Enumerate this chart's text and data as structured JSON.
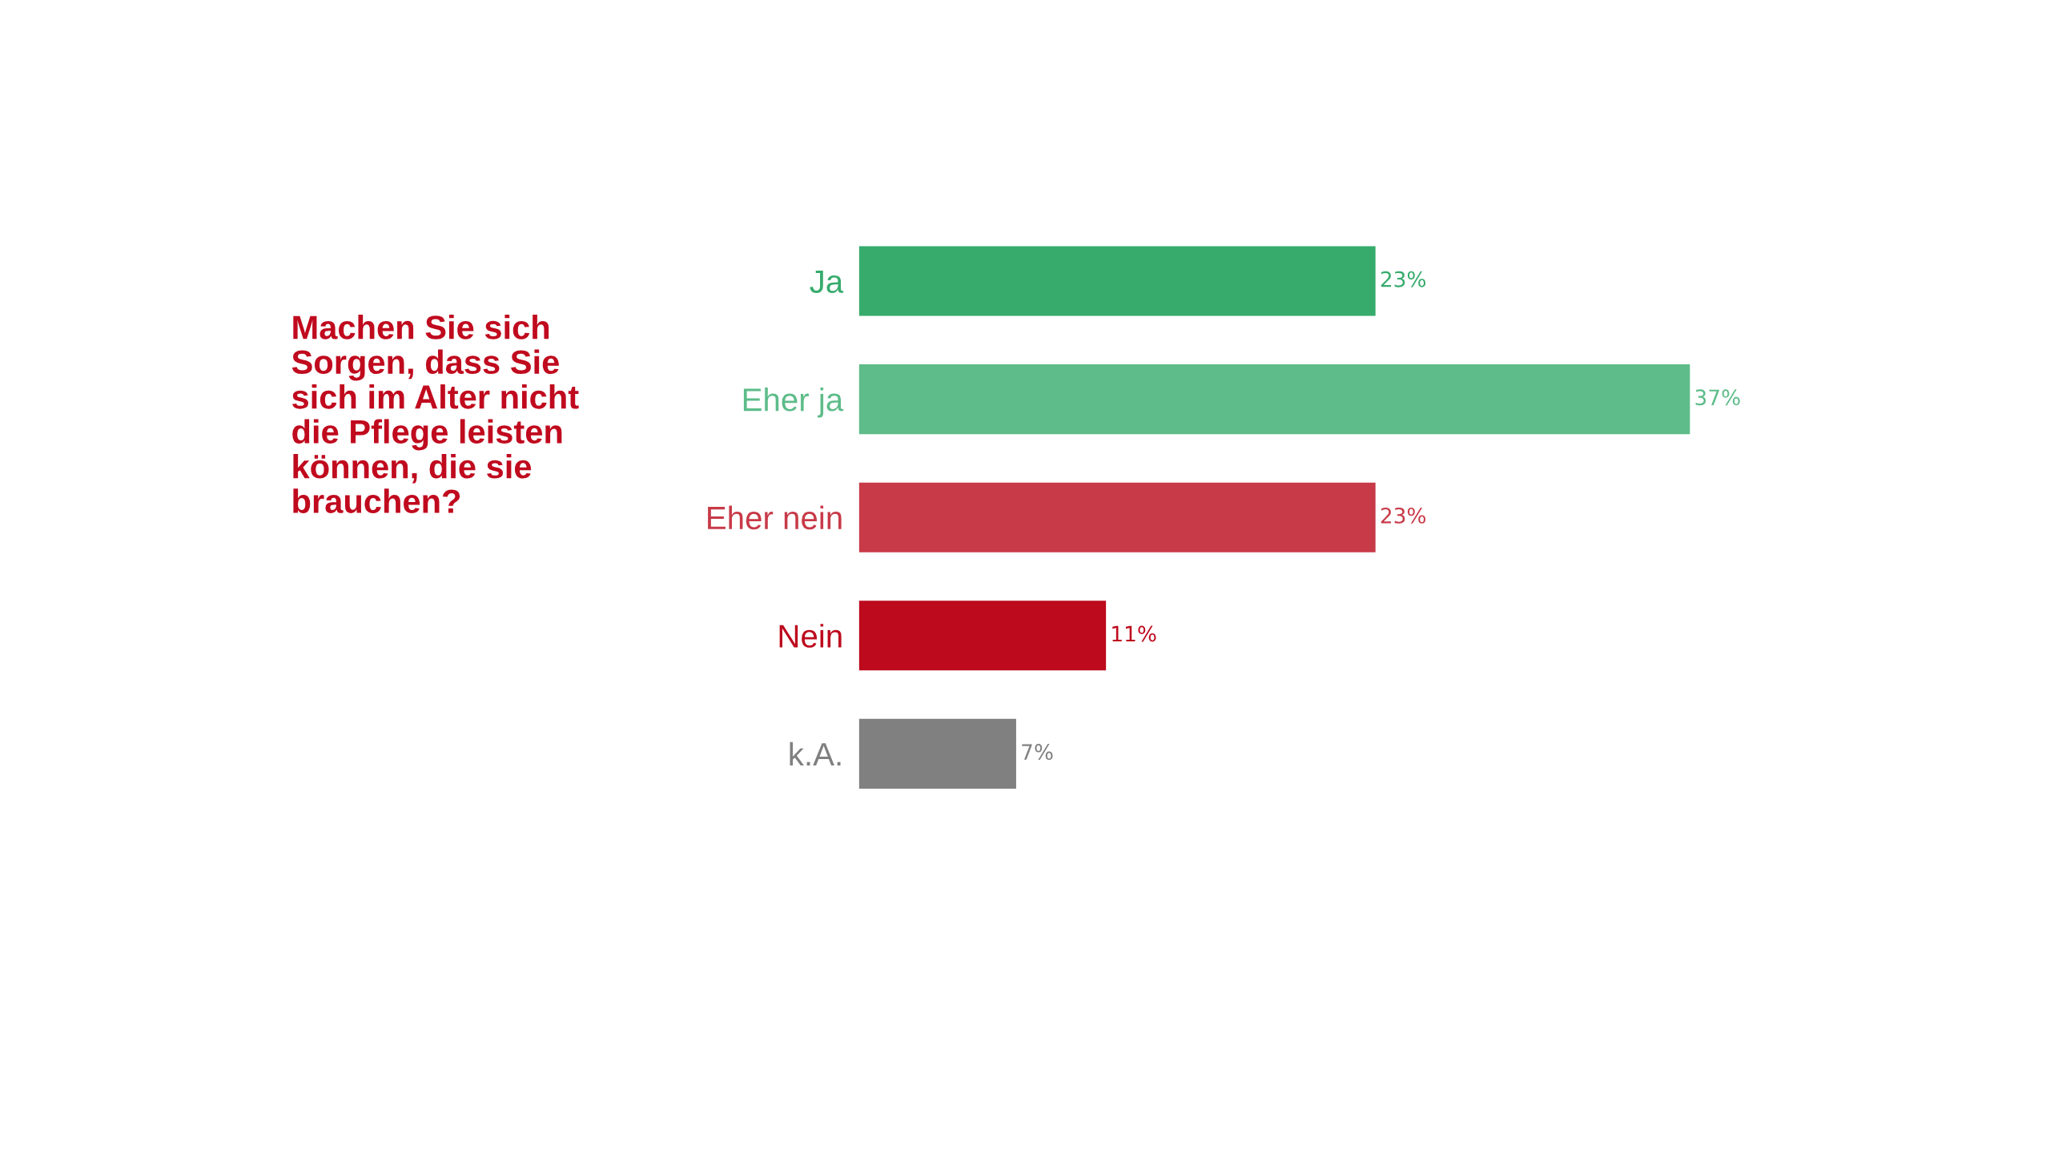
{
  "chart_data": {
    "type": "bar",
    "orientation": "horizontal",
    "title": "Machen Sie sich\nSorgen, dass Sie\nsich im Alter nicht\ndie Pflege leisten\nkönnen, die sie\nbrauchen?",
    "categories": [
      "Ja",
      "Eher ja",
      "Eher nein",
      "Nein",
      "k.A."
    ],
    "values": [
      23,
      37,
      23,
      11,
      7
    ],
    "colors": [
      "#36ab6c",
      "#5dbc89",
      "#c83a48",
      "#bd0a1d",
      "#808080"
    ],
    "value_labels": [
      "23%",
      "37%",
      "23%",
      "11%",
      "7%"
    ],
    "tick_labels": "y",
    "grid": false,
    "legend": false
  }
}
